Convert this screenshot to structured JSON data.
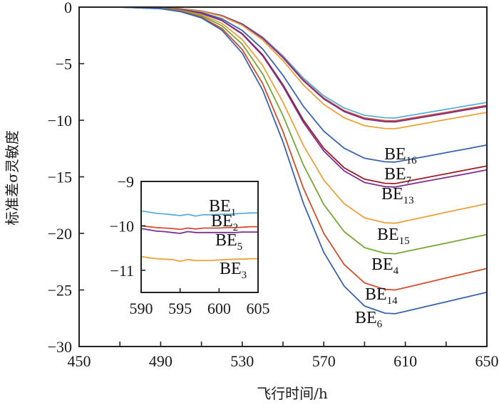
{
  "chart_data": {
    "type": "line",
    "title": "",
    "xlabel": "飞行时间/h",
    "ylabel": "标准差σ灵敏度",
    "xlim": [
      450,
      650
    ],
    "ylim": [
      -30,
      0
    ],
    "xticks": [
      450,
      490,
      530,
      570,
      610,
      650
    ],
    "xticks_minor": [
      470,
      510,
      550,
      590,
      630
    ],
    "yticks": [
      0,
      -5,
      -10,
      -15,
      -20,
      -25,
      -30
    ],
    "grid": false,
    "legend": "inline-labels",
    "x": [
      450,
      470,
      490,
      500,
      510,
      520,
      530,
      540,
      550,
      560,
      570,
      580,
      590,
      600,
      605,
      610,
      620,
      630,
      640,
      650
    ],
    "series": [
      {
        "name": "BE1",
        "label_main": "BE",
        "label_sub": "1",
        "color": "#5aafd8",
        "values": [
          0,
          0,
          -0.05,
          -0.15,
          -0.34,
          -0.74,
          -1.47,
          -2.65,
          -4.31,
          -6.27,
          -7.84,
          -8.92,
          -9.56,
          -9.78,
          -9.8,
          -9.65,
          -9.34,
          -9.04,
          -8.73,
          -8.43
        ]
      },
      {
        "name": "BE2",
        "label_main": "BE",
        "label_sub": "2",
        "color": "#cf4e2c",
        "values": [
          0,
          0,
          -0.05,
          -0.15,
          -0.35,
          -0.75,
          -1.51,
          -2.71,
          -4.42,
          -6.43,
          -8.04,
          -9.15,
          -9.8,
          -10.03,
          -10.05,
          -9.9,
          -9.6,
          -9.3,
          -8.99,
          -8.69
        ]
      },
      {
        "name": "BE5",
        "label_main": "BE",
        "label_sub": "5",
        "color": "#7d2f8f",
        "values": [
          0,
          0,
          -0.05,
          -0.15,
          -0.36,
          -0.76,
          -1.52,
          -2.74,
          -4.47,
          -6.5,
          -8.12,
          -9.24,
          -9.9,
          -10.13,
          -10.15,
          -10.0,
          -9.69,
          -9.39,
          -9.08,
          -8.78
        ]
      },
      {
        "name": "BE3",
        "label_main": "BE",
        "label_sub": "3",
        "color": "#e9a23b",
        "values": [
          0,
          0,
          -0.05,
          -0.16,
          -0.38,
          -0.81,
          -1.61,
          -2.9,
          -4.73,
          -6.88,
          -8.6,
          -9.78,
          -10.48,
          -10.73,
          -10.75,
          -10.59,
          -10.27,
          -9.94,
          -9.62,
          -9.3
        ]
      },
      {
        "name": "BE16",
        "label_main": "BE",
        "label_sub": "16",
        "color": "#3a64a9",
        "values": [
          0,
          0,
          -0.07,
          -0.21,
          -0.48,
          -1.03,
          -2.06,
          -3.7,
          -6.03,
          -8.77,
          -10.96,
          -12.47,
          -13.36,
          -13.67,
          -13.7,
          -13.53,
          -13.2,
          -12.86,
          -12.53,
          -12.19
        ]
      },
      {
        "name": "BE7",
        "label_main": "BE",
        "label_sub": "7",
        "color": "#9b1f2b",
        "values": [
          0,
          0,
          -0.08,
          -0.23,
          -0.55,
          -1.17,
          -2.34,
          -4.21,
          -6.86,
          -9.98,
          -12.48,
          -14.2,
          -15.21,
          -15.57,
          -15.6,
          -15.43,
          -15.08,
          -14.73,
          -14.39,
          -14.04
        ]
      },
      {
        "name": "BE13",
        "label_main": "BE",
        "label_sub": "13",
        "color": "#7d2f8f",
        "values": [
          0,
          0,
          -0.08,
          -0.24,
          -0.56,
          -1.19,
          -2.39,
          -4.29,
          -7.0,
          -10.18,
          -12.72,
          -14.47,
          -15.5,
          -15.87,
          -15.9,
          -15.73,
          -15.39,
          -15.06,
          -14.73,
          -14.39
        ]
      },
      {
        "name": "BE15",
        "label_main": "BE",
        "label_sub": "15",
        "color": "#e9a23b",
        "values": [
          0,
          0,
          -0.1,
          -0.29,
          -0.67,
          -1.43,
          -2.87,
          -5.16,
          -8.4,
          -12.22,
          -15.28,
          -17.38,
          -18.62,
          -19.06,
          -19.1,
          -18.91,
          -18.53,
          -18.14,
          -17.76,
          -17.38
        ]
      },
      {
        "name": "BE4",
        "label_main": "BE",
        "label_sub": "4",
        "color": "#74a735",
        "values": [
          0,
          0,
          -0.11,
          -0.33,
          -0.76,
          -1.64,
          -3.27,
          -5.89,
          -9.59,
          -13.95,
          -17.44,
          -19.84,
          -21.26,
          -21.76,
          -21.8,
          -21.61,
          -21.23,
          -20.86,
          -20.48,
          -20.1
        ]
      },
      {
        "name": "BE14",
        "label_main": "BE",
        "label_sub": "14",
        "color": "#cf4e2c",
        "values": [
          0,
          0,
          -0.13,
          -0.38,
          -0.88,
          -1.88,
          -3.75,
          -6.75,
          -11.0,
          -16.0,
          -20.0,
          -22.75,
          -24.38,
          -24.95,
          -25.0,
          -24.79,
          -24.37,
          -23.94,
          -23.52,
          -23.1
        ]
      },
      {
        "name": "BE6",
        "label_main": "BE",
        "label_sub": "6",
        "color": "#3a64a9",
        "values": [
          0,
          0,
          -0.14,
          -0.41,
          -0.95,
          -2.03,
          -4.07,
          -7.32,
          -11.92,
          -17.34,
          -21.68,
          -24.66,
          -26.42,
          -27.05,
          -27.1,
          -26.89,
          -26.47,
          -26.05,
          -25.63,
          -25.2
        ]
      }
    ],
    "inset": {
      "xlim": [
        590,
        605
      ],
      "ylim": [
        -11.5,
        -9
      ],
      "xticks": [
        590,
        595,
        600,
        605
      ],
      "yticks": [
        -9,
        -10,
        -11
      ],
      "x": [
        590,
        591,
        592,
        593,
        594,
        595,
        596,
        597,
        598,
        599,
        600,
        601,
        602,
        603,
        604,
        605
      ],
      "series": [
        {
          "name": "BE1",
          "label_main": "BE",
          "label_sub": "1",
          "color": "#5aafd8",
          "values": [
            -9.66,
            -9.69,
            -9.72,
            -9.73,
            -9.75,
            -9.77,
            -9.74,
            -9.78,
            -9.75,
            -9.75,
            -9.74,
            -9.74,
            -9.73,
            -9.72,
            -9.71,
            -9.71
          ]
        },
        {
          "name": "BE2",
          "label_main": "BE",
          "label_sub": "2",
          "color": "#cf4e2c",
          "values": [
            -10.0,
            -10.02,
            -10.04,
            -10.05,
            -10.06,
            -10.08,
            -10.05,
            -10.07,
            -10.05,
            -10.05,
            -10.05,
            -10.04,
            -10.04,
            -10.03,
            -10.02,
            -10.02
          ]
        },
        {
          "name": "BE5",
          "label_main": "BE",
          "label_sub": "5",
          "color": "#7d2f8f",
          "values": [
            -10.06,
            -10.09,
            -10.12,
            -10.13,
            -10.15,
            -10.17,
            -10.13,
            -10.15,
            -10.15,
            -10.15,
            -10.15,
            -10.15,
            -10.15,
            -10.14,
            -10.14,
            -10.14
          ]
        },
        {
          "name": "BE3",
          "label_main": "BE",
          "label_sub": "3",
          "color": "#e9a23b",
          "values": [
            -10.69,
            -10.72,
            -10.74,
            -10.75,
            -10.76,
            -10.8,
            -10.76,
            -10.78,
            -10.78,
            -10.78,
            -10.77,
            -10.76,
            -10.75,
            -10.75,
            -10.74,
            -10.74
          ]
        }
      ]
    }
  }
}
